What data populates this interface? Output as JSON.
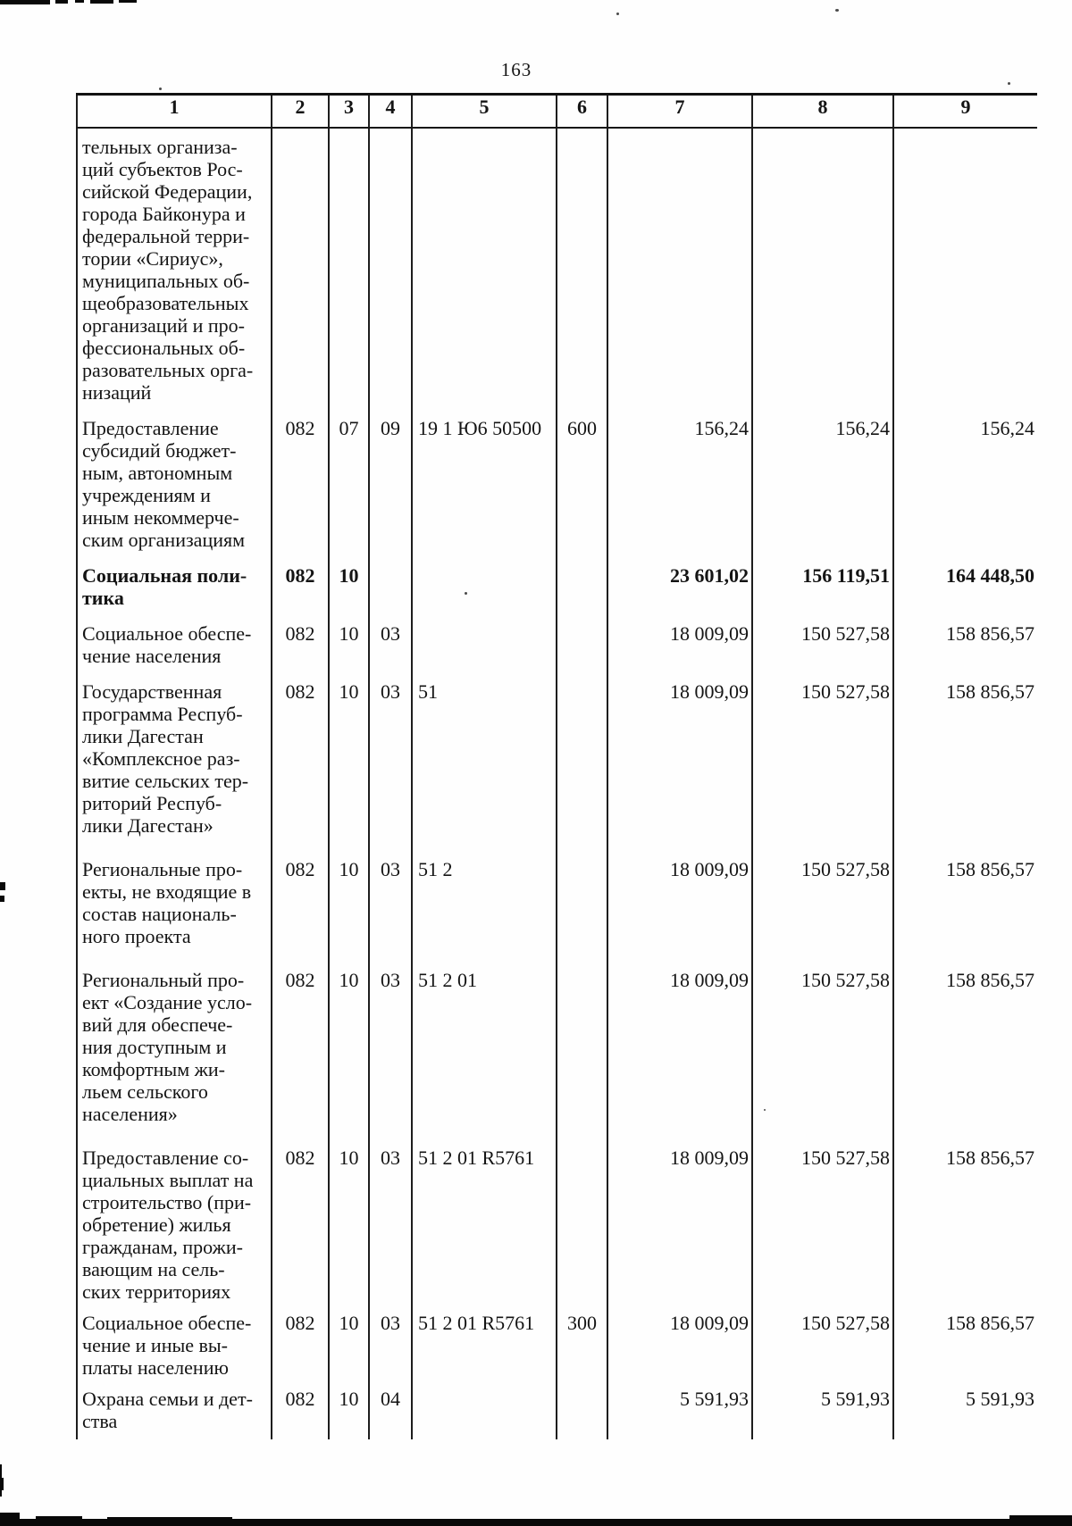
{
  "page": {
    "number": "163"
  },
  "colors": {
    "ink": "#141414",
    "line": "#1d1d1d"
  },
  "table": {
    "header": [
      "1",
      "2",
      "3",
      "4",
      "5",
      "6",
      "7",
      "8",
      "9"
    ],
    "rows": [
      {
        "label": "тельных организа-\nций субъектов Рос-\nсийской Федерации,\nгорода Байконура и\nфедеральной терри-\nтории «Сириус»,\nмуниципальных об-\nщеобразовательных\nорганизаций и про-\nфессиональных об-\nразовательных орга-\nнизаций",
        "c2": "",
        "c3": "",
        "c4": "",
        "c5": "",
        "c6": "",
        "c7": "",
        "c8": "",
        "c9": "",
        "bold": false
      },
      {
        "label": "Предоставление\nсубсидий бюджет-\nным, автономным\nучреждениям и\nиным некоммерче-\nским организациям",
        "c2": "082",
        "c3": "07",
        "c4": "09",
        "c5": "19 1 Ю6 50500",
        "c6": "600",
        "c7": "156,24",
        "c8": "156,24",
        "c9": "156,24",
        "bold": false
      },
      {
        "label": "Социальная поли-\nтика",
        "c2": "082",
        "c3": "10",
        "c4": "",
        "c5": "",
        "c6": "",
        "c7": "23 601,02",
        "c8": "156 119,51",
        "c9": "164 448,50",
        "bold": true
      },
      {
        "label": "Социальное обеспе-\nчение населения",
        "c2": "082",
        "c3": "10",
        "c4": "03",
        "c5": "",
        "c6": "",
        "c7": "18 009,09",
        "c8": "150 527,58",
        "c9": "158 856,57",
        "bold": false
      },
      {
        "label": "Государственная\nпрограмма Респуб-\nлики Дагестан\n«Комплексное раз-\nвитие сельских тер-\nриторий Респуб-\nлики Дагестан»",
        "c2": "082",
        "c3": "10",
        "c4": "03",
        "c5": "51",
        "c6": "",
        "c7": "18 009,09",
        "c8": "150 527,58",
        "c9": "158 856,57",
        "bold": false
      },
      {
        "label": "Региональные про-\nекты, не входящие в\nсостав националь-\nного проекта",
        "c2": "082",
        "c3": "10",
        "c4": "03",
        "c5": "51 2",
        "c6": "",
        "c7": "18 009,09",
        "c8": "150 527,58",
        "c9": "158 856,57",
        "bold": false
      },
      {
        "label": "Региональный про-\nект «Создание усло-\nвий для обеспече-\nния доступным и\nкомфортным жи-\nльем сельского\nнаселения»",
        "c2": "082",
        "c3": "10",
        "c4": "03",
        "c5": "51 2 01",
        "c6": "",
        "c7": "18 009,09",
        "c8": "150 527,58",
        "c9": "158 856,57",
        "bold": false
      },
      {
        "label": "Предоставление со-\nциальных выплат на\nстроительство (при-\nобретение) жилья\nгражданам, прожи-\nвающим на сель-\nских территориях",
        "c2": "082",
        "c3": "10",
        "c4": "03",
        "c5": "51 2 01 R5761",
        "c6": "",
        "c7": "18 009,09",
        "c8": "150 527,58",
        "c9": "158 856,57",
        "bold": false
      },
      {
        "label": "Социальное обеспе-\nчение и иные вы-\nплаты населению",
        "c2": "082",
        "c3": "10",
        "c4": "03",
        "c5": "51 2 01 R5761",
        "c6": "300",
        "c7": "18 009,09",
        "c8": "150 527,58",
        "c9": "158 856,57",
        "bold": false
      },
      {
        "label": "Охрана семьи и дет-\nства",
        "c2": "082",
        "c3": "10",
        "c4": "04",
        "c5": "",
        "c6": "",
        "c7": "5 591,93",
        "c8": "5 591,93",
        "c9": "5 591,93",
        "bold": false
      }
    ]
  }
}
